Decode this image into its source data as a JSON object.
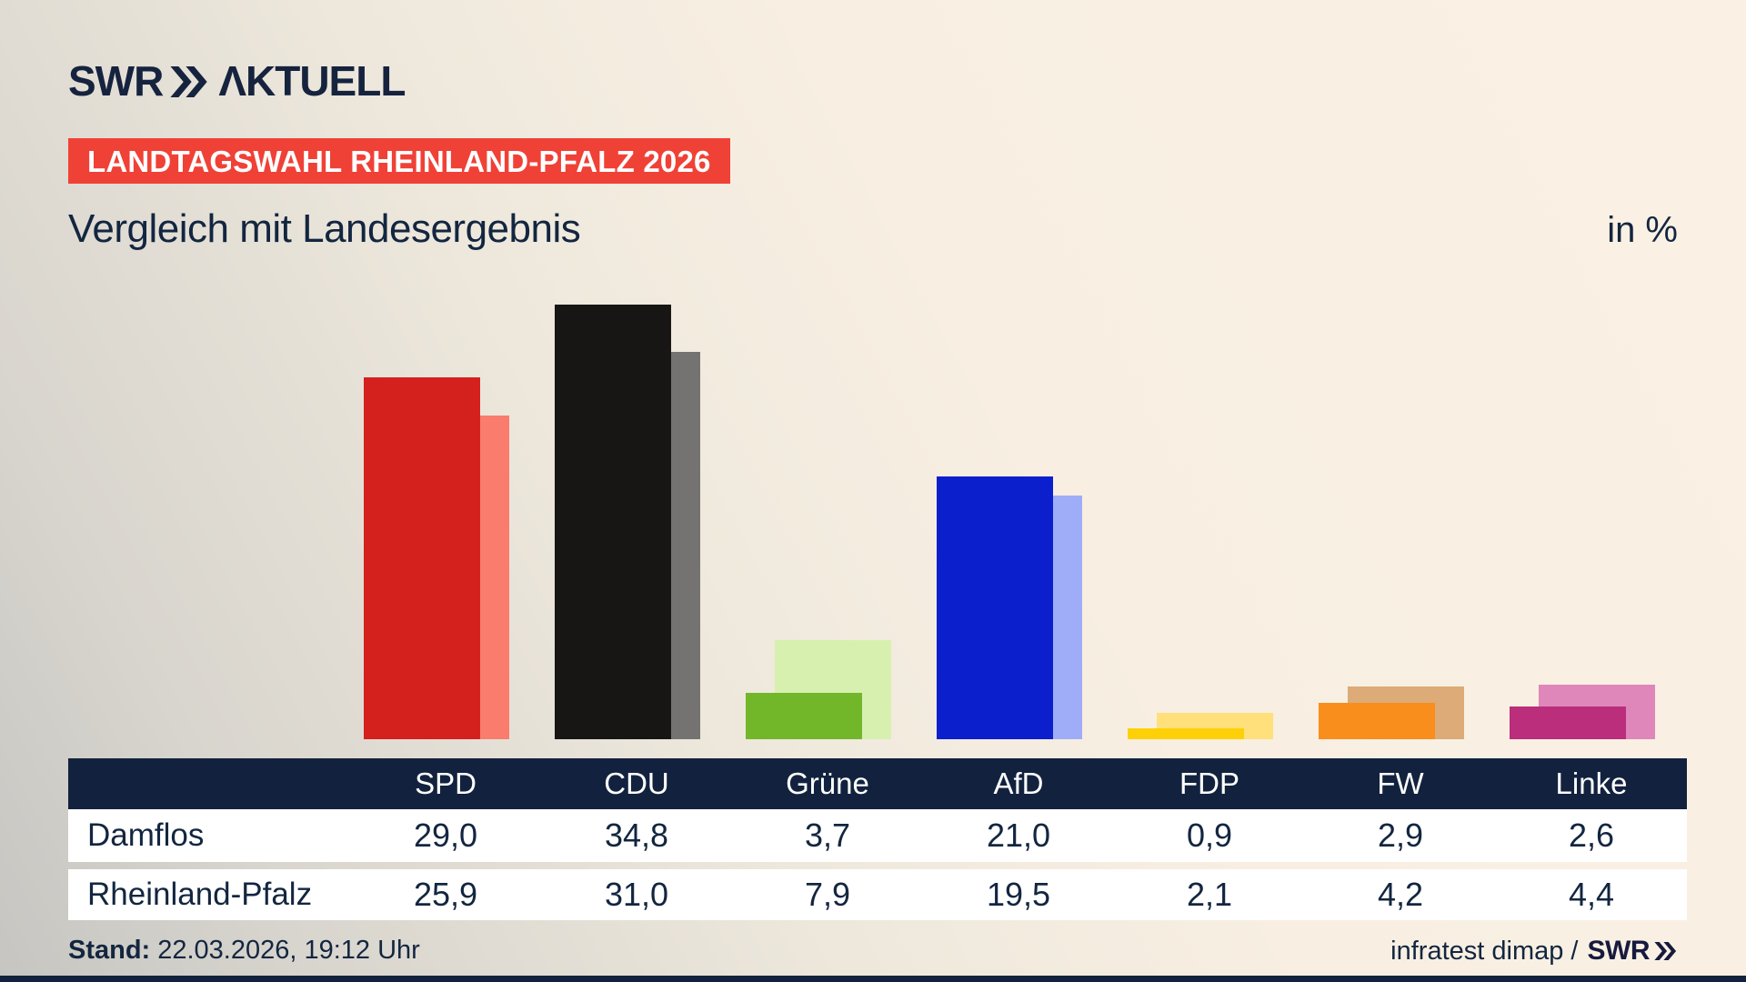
{
  "brand": {
    "name": "SWR",
    "suffix": "ΛKTUELL"
  },
  "header": {
    "banner": "LANDTAGSWAHL RHEINLAND-PFALZ 2026",
    "title": "Vergleich mit Landesergebnis",
    "unit": "in %"
  },
  "chart_data": {
    "type": "bar",
    "categories": [
      "SPD",
      "CDU",
      "Grüne",
      "AfD",
      "FDP",
      "FW",
      "Linke"
    ],
    "series": [
      {
        "name": "Damflos",
        "values": [
          29.0,
          34.8,
          3.7,
          21.0,
          0.9,
          2.9,
          2.6
        ]
      },
      {
        "name": "Rheinland-Pfalz",
        "values": [
          25.9,
          31.0,
          7.9,
          19.5,
          2.1,
          4.2,
          4.4
        ]
      }
    ],
    "unit": "%",
    "ylim": [
      0,
      36
    ],
    "grid": false,
    "legend": "table-rows-act-as-legend",
    "party_colors": [
      {
        "party": "SPD",
        "main": "#d4211d",
        "light": "#fa7c6d"
      },
      {
        "party": "CDU",
        "main": "#171614",
        "light": "#757371"
      },
      {
        "party": "Grüne",
        "main": "#72b72a",
        "light": "#d7f0b0"
      },
      {
        "party": "AfD",
        "main": "#0b20cc",
        "light": "#9fadf8"
      },
      {
        "party": "FDP",
        "main": "#fed008",
        "light": "#ffe07a"
      },
      {
        "party": "FW",
        "main": "#f98e1d",
        "light": "#dcab77"
      },
      {
        "party": "Linke",
        "main": "#ba2e7c",
        "light": "#df87bb"
      }
    ]
  },
  "table": {
    "columns": [
      "SPD",
      "CDU",
      "Grüne",
      "AfD",
      "FDP",
      "FW",
      "Linke"
    ],
    "rows": [
      {
        "label": "Damflos",
        "values": [
          "29,0",
          "34,8",
          "3,7",
          "21,0",
          "0,9",
          "2,9",
          "2,6"
        ]
      },
      {
        "label": "Rheinland-Pfalz",
        "values": [
          "25,9",
          "31,0",
          "7,9",
          "19,5",
          "2,1",
          "4,2",
          "4,4"
        ]
      }
    ]
  },
  "footer": {
    "stand_label": "Stand:",
    "stand_value": "22.03.2026, 19:12 Uhr",
    "source": "infratest dimap /",
    "source_brand": "SWR"
  },
  "colors": {
    "navy": "#12223e",
    "text_navy": "#132640",
    "banner_red": "#f04137",
    "background_light": "#faf1e4",
    "background_dark": "#c6c5c1",
    "row_white": "#ffffff"
  }
}
